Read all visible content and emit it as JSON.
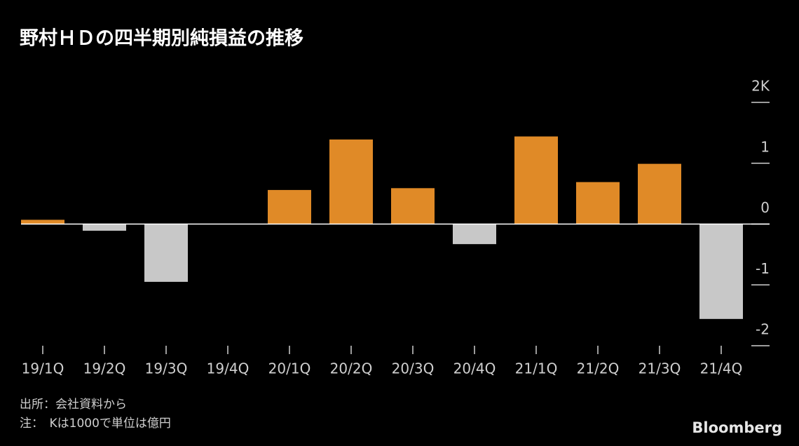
{
  "chart_data": {
    "type": "bar",
    "title": "野村ＨＤの四半期別純損益の推移",
    "categories": [
      "19/1Q",
      "19/2Q",
      "19/3Q",
      "19/4Q",
      "20/1Q",
      "20/2Q",
      "20/3Q",
      "20/4Q",
      "21/1Q",
      "21/2Q",
      "21/3Q",
      "21/4Q"
    ],
    "values": [
      0.07,
      -0.11,
      -0.95,
      0,
      0.56,
      1.39,
      0.59,
      -0.33,
      1.44,
      0.69,
      0.99,
      -1.56
    ],
    "color": "#e08a27",
    "negative_color": "#c8c8c8",
    "ylim": [
      -2,
      2
    ],
    "yticks": [
      {
        "value": 2,
        "label": "2K"
      },
      1,
      0,
      -1,
      -2
    ],
    "source": "出所：会社資料から",
    "note": "注：　Kは1000で単位は億円",
    "brand": "Bloomberg"
  }
}
